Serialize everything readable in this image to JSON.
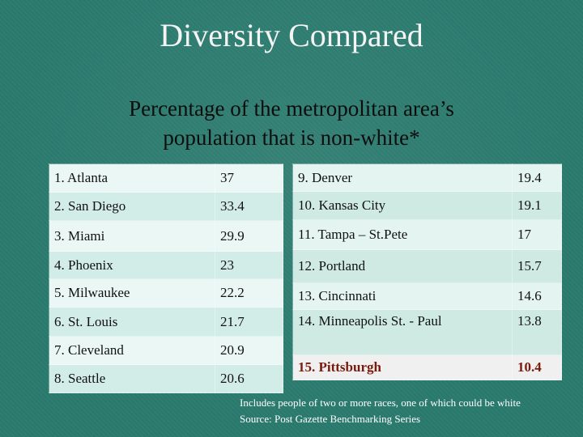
{
  "slide": {
    "title": "Diversity Compared",
    "subtitle_line1": "Percentage of the metropolitan area’s",
    "subtitle_line2": "population that is non-white*"
  },
  "left_table": [
    {
      "city": "1. Atlanta",
      "value": "37"
    },
    {
      "city": "2. San Diego",
      "value": "33.4"
    },
    {
      "city": "3. Miami",
      "value": "29.9"
    },
    {
      "city": "4. Phoenix",
      "value": "23"
    },
    {
      "city": "5. Milwaukee",
      "value": "22.2"
    },
    {
      "city": "6. St. Louis",
      "value": "21.7"
    },
    {
      "city": "7. Cleveland",
      "value": "20.9"
    },
    {
      "city": "8. Seattle",
      "value": "20.6"
    }
  ],
  "right_table": [
    {
      "city": "9. Denver",
      "value": "19.4"
    },
    {
      "city": "10. Kansas City",
      "value": "19.1"
    },
    {
      "city": "11. Tampa – St.Pete",
      "value": "17"
    },
    {
      "city": "12. Portland",
      "value": "15.7"
    },
    {
      "city": "13. Cincinnati",
      "value": "14.6"
    },
    {
      "city": "14. Minneapolis St. - Paul",
      "value": "13.8"
    },
    {
      "city": "15. Pittsburgh",
      "value": "10.4"
    }
  ],
  "footnotes": {
    "note": "Includes people of two or more races, one of which could be white",
    "source": "Source: Post Gazette Benchmarking Series"
  },
  "colors": {
    "background": "#2a7a6e",
    "highlight_text": "#7a1a0c"
  }
}
